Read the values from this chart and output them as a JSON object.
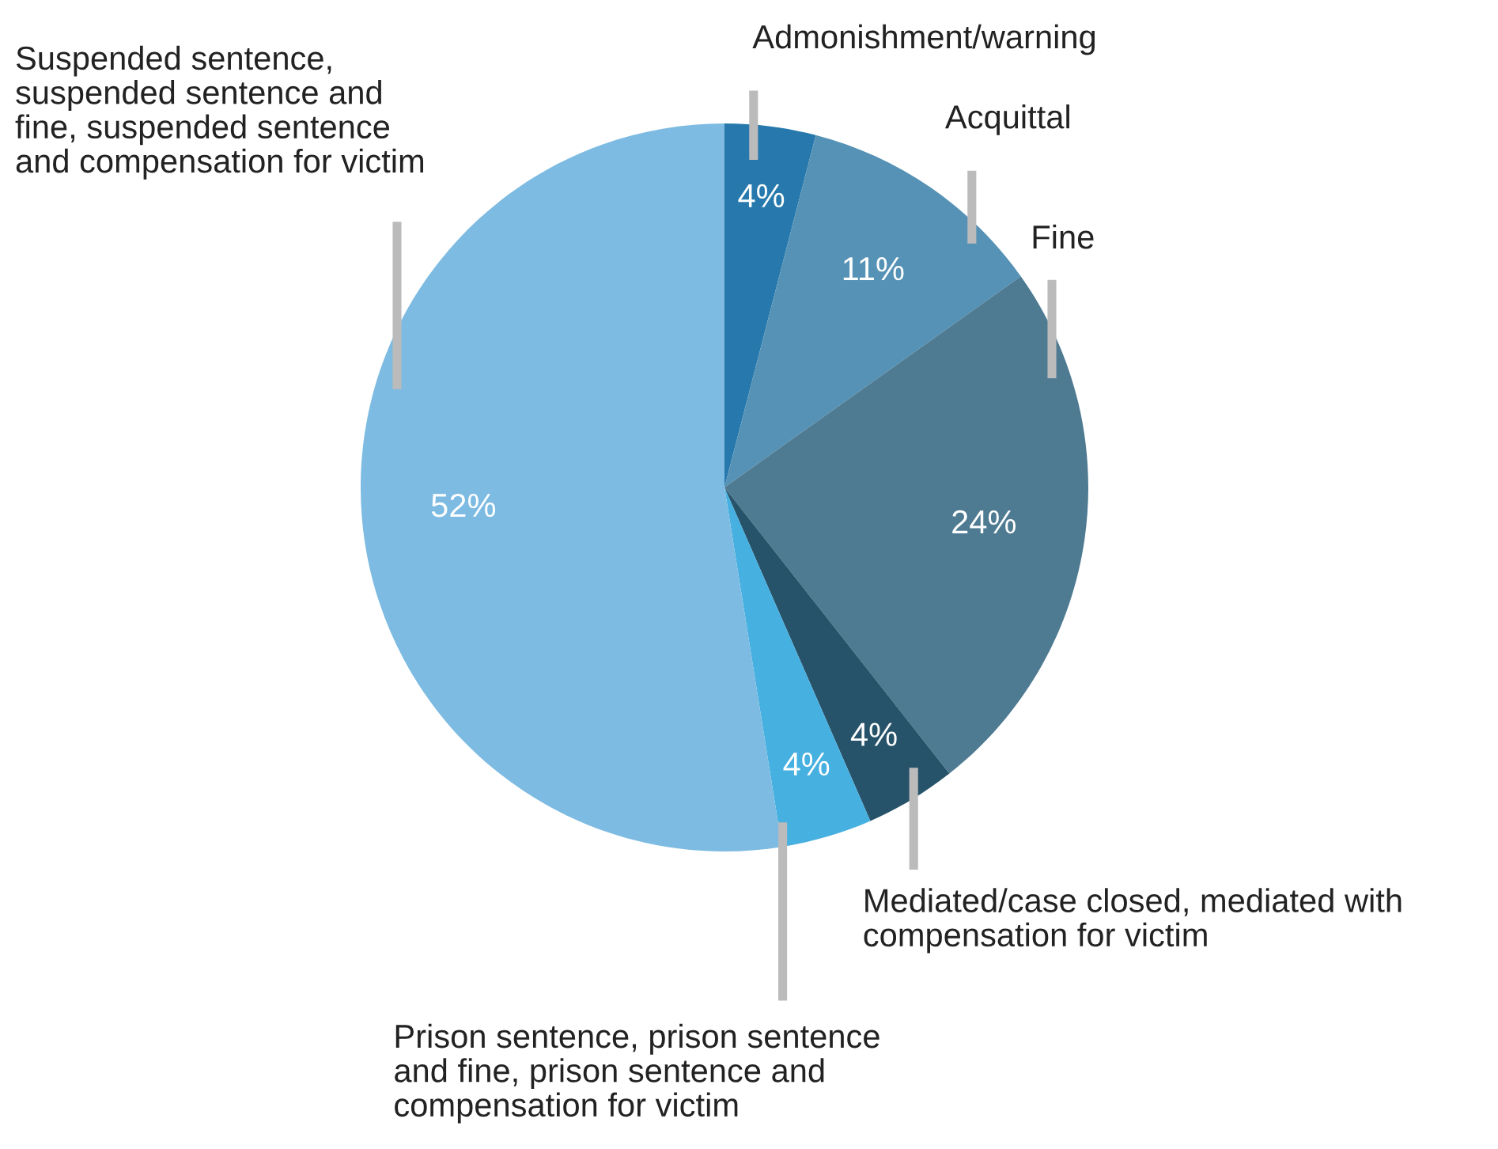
{
  "chart_data": {
    "type": "pie",
    "categories": [
      "Admonishment/warning",
      "Acquittal",
      "Fine",
      "Mediated/case closed, mediated with\ncompensation for victim",
      "Prison sentence, prison sentence\nand fine, prison sentence and\ncompensation for victim",
      "Suspended sentence,\nsuspended sentence and\nfine, suspended sentence\nand compensation for victim"
    ],
    "values": [
      4,
      11,
      24,
      4,
      4,
      52
    ],
    "value_labels": [
      "4%",
      "11%",
      "24%",
      "4%",
      "4%",
      "52%"
    ],
    "colors": [
      "#2779ad",
      "#5592b5",
      "#4e7a92",
      "#27536a",
      "#46b0e0",
      "#7dbbe2"
    ],
    "legend": false
  }
}
